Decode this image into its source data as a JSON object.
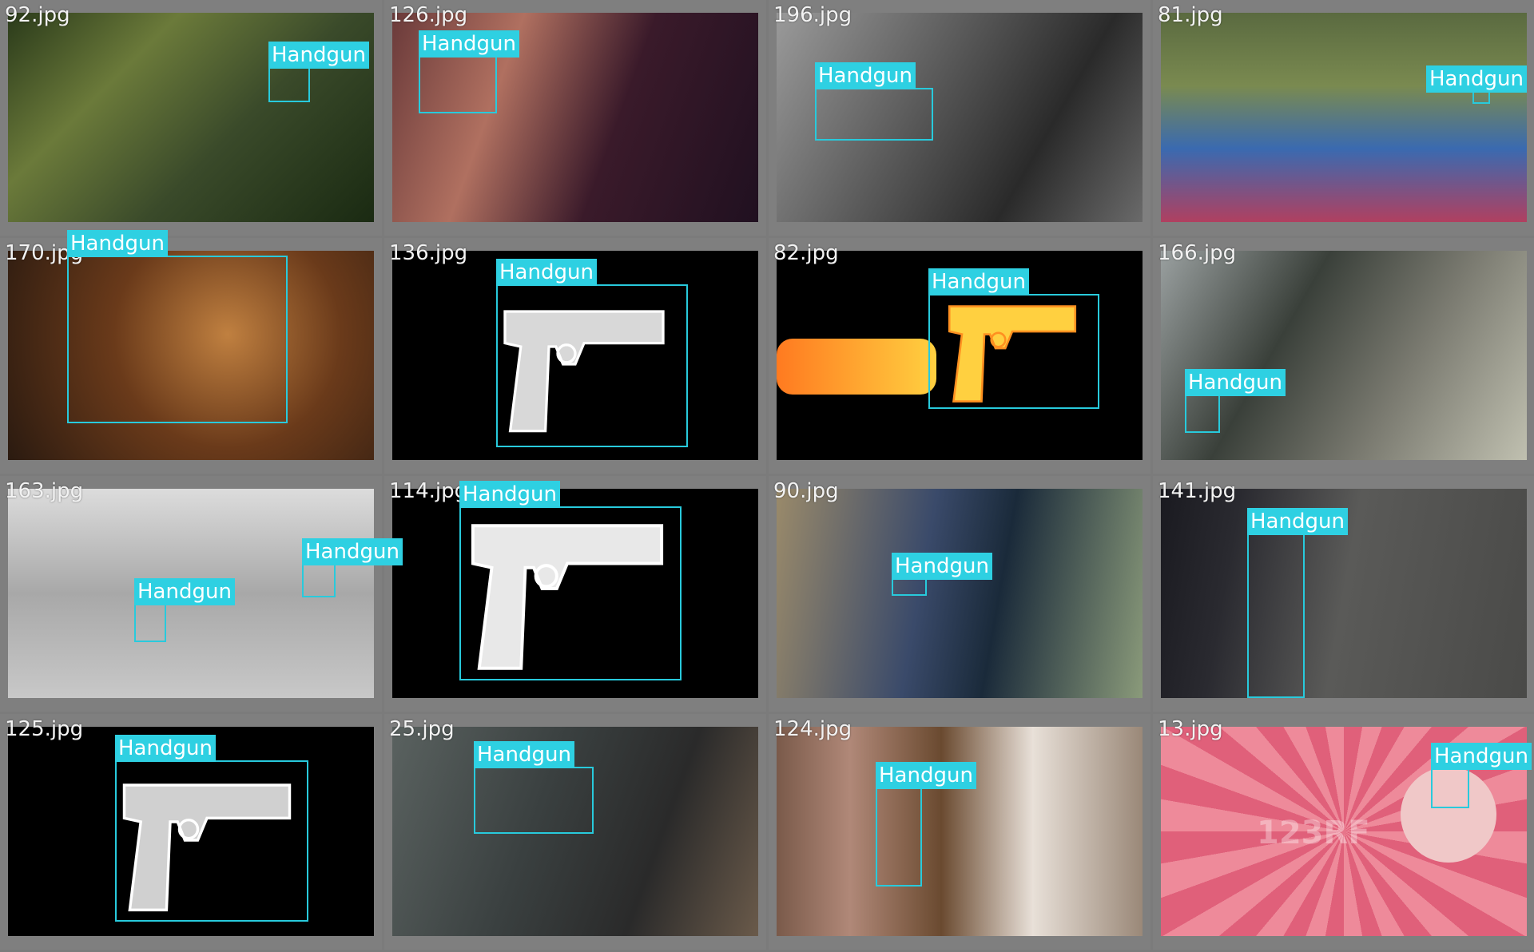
{
  "tiles": [
    {
      "file": "92.jpg",
      "label": "Handgun",
      "bg": "linear-gradient(135deg,#2a3a1a 0%,#6b7a3a 30%,#3a4a2a 60%,#1a2a12 100%)"
    },
    {
      "file": "126.jpg",
      "label": "Handgun",
      "bg": "linear-gradient(110deg,#6a3a3a 0%,#b07060 30%,#3a1a2a 60%,#201020 100%)"
    },
    {
      "file": "196.jpg",
      "label": "Handgun",
      "bg": "linear-gradient(120deg,#9a9a9a 0%,#5a5a5a 40%,#2a2a2a 70%,#6a6a6a 100%)"
    },
    {
      "file": "81.jpg",
      "label": "Handgun",
      "bg": "linear-gradient(180deg,#5a6a40 0%,#7a8a50 35%,#3a6ab0 65%,#b04060 100%)"
    },
    {
      "file": "170.jpg",
      "label": "Handgun",
      "bg": "radial-gradient(circle at 60% 40%,#c08040 0%,#6a3a1a 45%,#2a1a10 100%)"
    },
    {
      "file": "136.jpg",
      "label": "Handgun",
      "bg": "#000000"
    },
    {
      "file": "82.jpg",
      "label": "Handgun",
      "bg": "#000000"
    },
    {
      "file": "166.jpg",
      "label": "Handgun",
      "bg": "linear-gradient(120deg,#9aa0a0 0%,#3a403a 35%,#7a7a70 65%,#c0c0b0 100%)"
    },
    {
      "file": "163.jpg",
      "label": "Handgun",
      "label2": "Handgun",
      "bg": "linear-gradient(180deg,#dcdcdc 0%,#a8a8a8 50%,#c8c8c8 100%)"
    },
    {
      "file": "114.jpg",
      "label": "Handgun",
      "bg": "#000000"
    },
    {
      "file": "90.jpg",
      "label": "Handgun",
      "bg": "linear-gradient(100deg,#9a8a6a 0%,#3a4a6a 40%,#1a2a3a 60%,#8a9a7a 100%)"
    },
    {
      "file": "141.jpg",
      "label": "Handgun",
      "bg": "linear-gradient(100deg,#1a1a20 0%,#2a2a30 20%,#5a5a58 50%,#4a4a48 100%)"
    },
    {
      "file": "125.jpg",
      "label": "Handgun",
      "bg": "#000000"
    },
    {
      "file": "25.jpg",
      "label": "Handgun",
      "bg": "linear-gradient(110deg,#5a6260 0%,#3a4040 40%,#2a2a2a 70%,#6a5a4a 100%)"
    },
    {
      "file": "124.jpg",
      "label": "Handgun",
      "bg": "linear-gradient(90deg,#7a5a4a 0%,#b08878 20%,#6a4a30 45%,#e8e0d8 70%,#9a8878 100%)"
    },
    {
      "file": "13.jpg",
      "label": "Handgun",
      "bg": "repeating-conic-gradient(from 0deg at 50% 50%,#e0607a 0deg 10deg,#ee8a9a 10deg 20deg)"
    }
  ],
  "watermark": "123RF"
}
